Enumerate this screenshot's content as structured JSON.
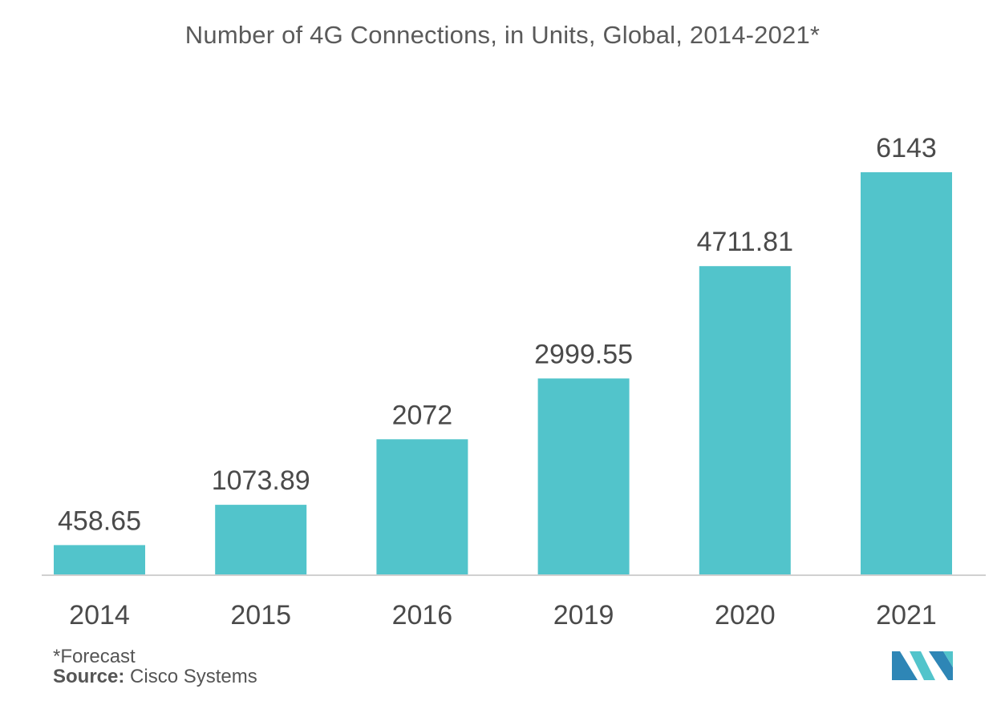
{
  "title": "Number of 4G Connections, in Units, Global, 2014-2021*",
  "footnote": "*Forecast",
  "source": {
    "label": "Source:",
    "value": "Cisco Systems"
  },
  "colors": {
    "bar": "#52c4cb",
    "axis": "#d0d0d0",
    "text": "#4a4a4a",
    "logo_dark": "#2e86b6",
    "logo_light": "#52c4cb"
  },
  "chart_data": {
    "type": "bar",
    "categories": [
      "2014",
      "2015",
      "2016",
      "2019",
      "2020",
      "2021"
    ],
    "values": [
      458.65,
      1073.89,
      2072,
      2999.55,
      4711.81,
      6143
    ],
    "value_labels": [
      "458.65",
      "1073.89",
      "2072",
      "2999.55",
      "4711.81",
      "6143"
    ],
    "ylim": [
      0,
      6143
    ],
    "grid": false,
    "legend": "none"
  }
}
